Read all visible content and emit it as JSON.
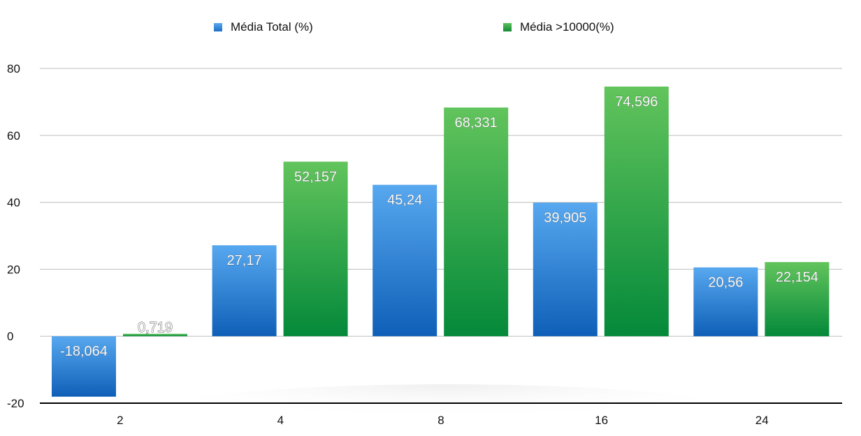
{
  "chart_data": {
    "type": "bar",
    "categories": [
      "2",
      "4",
      "8",
      "16",
      "24"
    ],
    "series": [
      {
        "name": "Média Total (%)",
        "values": [
          -18.064,
          27.17,
          45.24,
          39.905,
          20.56
        ],
        "labels": [
          "-18,064",
          "27,17",
          "45,24",
          "39,905",
          "20,56"
        ],
        "color": "#2f86d9"
      },
      {
        "name": "Média >10000(%)",
        "values": [
          0.719,
          52.157,
          68.331,
          74.596,
          22.154
        ],
        "labels": [
          "0,719",
          "52,157",
          "68,331",
          "74,596",
          "22,154"
        ],
        "color": "#1e9c3c"
      }
    ],
    "yticks": [
      "80",
      "60",
      "40",
      "20",
      "0",
      "-20"
    ],
    "ylim": [
      -20,
      80
    ],
    "grid": true,
    "legend_position": "top"
  }
}
